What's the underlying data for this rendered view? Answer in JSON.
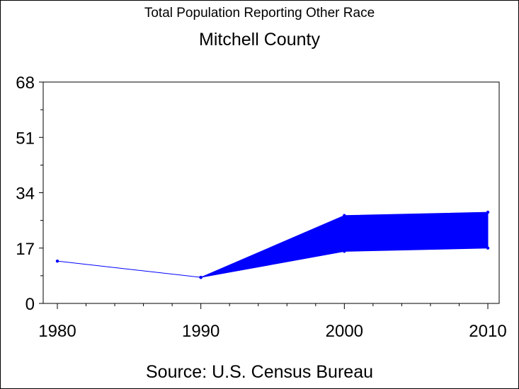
{
  "chart_data": {
    "type": "area",
    "title": "Total Population Reporting Other Race",
    "subtitle": "Mitchell County",
    "source": "Source: U.S. Census Bureau",
    "xlabel": "",
    "ylabel": "",
    "x": [
      1980,
      1990,
      2000,
      2010
    ],
    "x_tick_labels": [
      "1980",
      "1990",
      "2000",
      "2010"
    ],
    "xlim": [
      1980,
      2010
    ],
    "ylim": [
      0,
      68
    ],
    "y_ticks": [
      0,
      17,
      34,
      51,
      68
    ],
    "y_tick_labels": [
      "0",
      "17",
      "34",
      "51",
      "68"
    ],
    "series": [
      {
        "role": "line",
        "x": [
          1980,
          1990
        ],
        "values": [
          13,
          8
        ]
      },
      {
        "role": "band-upper",
        "x": [
          1990,
          2000,
          2010
        ],
        "values": [
          8,
          27,
          28
        ]
      },
      {
        "role": "band-lower",
        "x": [
          1990,
          2000,
          2010
        ],
        "values": [
          8,
          16,
          17
        ]
      }
    ],
    "grid": false,
    "legend": "none",
    "colors": {
      "series": "#0000ff",
      "axis": "#000000"
    }
  }
}
